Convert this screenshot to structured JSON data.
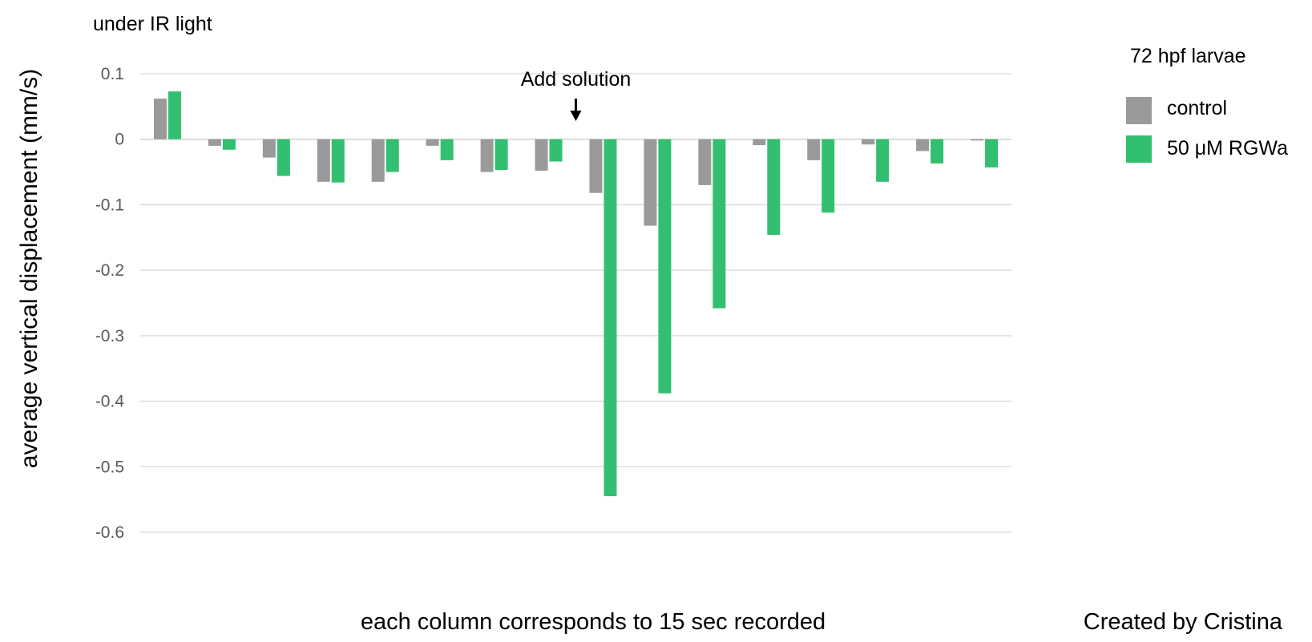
{
  "chart_data": {
    "type": "bar",
    "subtitle": "under IR light",
    "xlabel": "each column corresponds to 15 sec recorded",
    "ylabel": "average vertical displacement (mm/s)",
    "ylim": [
      -0.6,
      0.1
    ],
    "yticks": [
      {
        "value": 0.1,
        "label": "0.1"
      },
      {
        "value": 0,
        "label": "0"
      },
      {
        "value": -0.1,
        "label": "-0.1"
      },
      {
        "value": -0.2,
        "label": "-0.2"
      },
      {
        "value": -0.3,
        "label": "-0.3"
      },
      {
        "value": -0.4,
        "label": "-0.4"
      },
      {
        "value": -0.5,
        "label": "-0.5"
      },
      {
        "value": -0.6,
        "label": "-0.6"
      }
    ],
    "grid": true,
    "legend": {
      "title": "72 hpf larvae",
      "position": "top-right"
    },
    "annotation": {
      "text": "Add solution",
      "after_column": 8
    },
    "credit": "Created by Cristina",
    "series": [
      {
        "name": "control",
        "color": "#9a9a9a",
        "values": [
          0.062,
          -0.01,
          -0.028,
          -0.065,
          -0.065,
          -0.01,
          -0.05,
          -0.048,
          -0.082,
          -0.132,
          -0.07,
          -0.009,
          -0.032,
          -0.008,
          -0.018,
          -0.002
        ]
      },
      {
        "name": "50 μM RGWa",
        "color": "#33bf70",
        "values": [
          0.073,
          -0.016,
          -0.056,
          -0.066,
          -0.05,
          -0.032,
          -0.047,
          -0.034,
          -0.545,
          -0.388,
          -0.258,
          -0.146,
          -0.112,
          -0.065,
          -0.037,
          -0.043
        ]
      }
    ]
  }
}
